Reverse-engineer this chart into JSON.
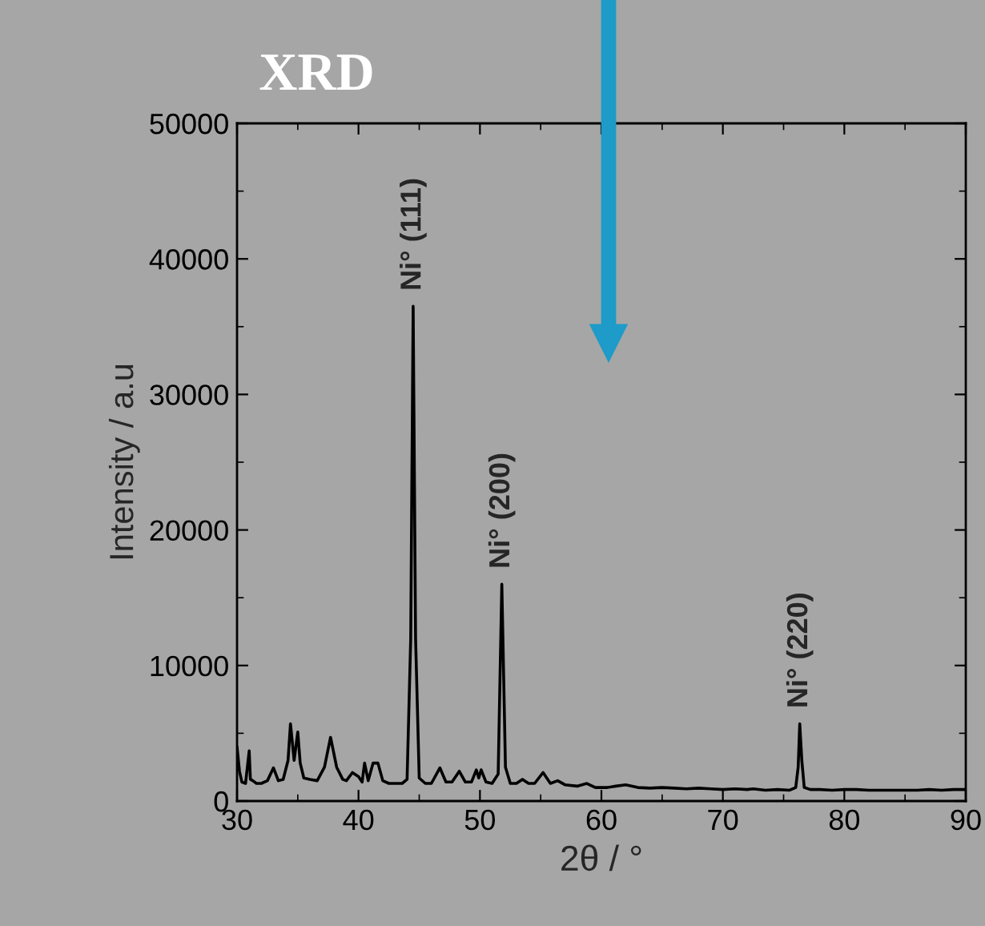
{
  "chart_data": {
    "type": "line",
    "title": "XRD",
    "xlabel": "2θ / °",
    "ylabel": "Intensity / a.u",
    "x": [
      30,
      30.2,
      30.4,
      30.7,
      31.0,
      31.1,
      31.3,
      31.6,
      32.0,
      32.5,
      33.0,
      33.4,
      33.8,
      34.2,
      34.4,
      34.7,
      35.0,
      35.2,
      35.5,
      36.0,
      36.6,
      37.2,
      37.7,
      38.2,
      38.7,
      39.0,
      39.5,
      40.0,
      40.3,
      40.5,
      40.8,
      41.2,
      41.6,
      42.0,
      42.5,
      43.0,
      43.6,
      44.0,
      44.3,
      44.5,
      44.7,
      45.0,
      45.5,
      46.0,
      46.7,
      47.2,
      47.7,
      48.3,
      48.8,
      49.3,
      49.7,
      49.9,
      50.1,
      50.5,
      51.0,
      51.5,
      51.8,
      52.1,
      52.5,
      53.0,
      53.5,
      54.0,
      54.5,
      55.2,
      55.8,
      56.4,
      57.0,
      58.0,
      58.8,
      59.5,
      60.5,
      61.2,
      62.0,
      63.0,
      64.0,
      65.0,
      66.0,
      67.0,
      68.0,
      69.0,
      70.0,
      71.0,
      72.0,
      72.5,
      73.5,
      74.5,
      75.5,
      76.0,
      76.2,
      76.33,
      76.5,
      76.7,
      77.2,
      78.0,
      79.0,
      80.0,
      81.0,
      82.0,
      83.0,
      84.0,
      85.0,
      86.0,
      87.0,
      88.0,
      89.0,
      90.0
    ],
    "series": [
      {
        "color": "#000000",
        "values": [
          4000,
          2200,
          1400,
          1300,
          3700,
          1600,
          1500,
          1300,
          1300,
          1500,
          2450,
          1500,
          1600,
          3000,
          5700,
          3000,
          5100,
          2800,
          1700,
          1600,
          1500,
          2500,
          4700,
          2500,
          1600,
          1500,
          2100,
          1800,
          1400,
          2800,
          1500,
          2800,
          2800,
          1500,
          1300,
          1300,
          1300,
          1600,
          12000,
          36500,
          12000,
          1700,
          1300,
          1300,
          2450,
          1400,
          1400,
          2200,
          1400,
          1400,
          2300,
          1700,
          2300,
          1400,
          1300,
          2000,
          16000,
          2500,
          1300,
          1300,
          1600,
          1300,
          1300,
          2100,
          1300,
          1500,
          1200,
          1100,
          1300,
          1000,
          1000,
          1100,
          1200,
          1000,
          950,
          1000,
          950,
          900,
          950,
          900,
          850,
          900,
          850,
          900,
          800,
          850,
          800,
          1000,
          2500,
          5700,
          3000,
          1000,
          850,
          850,
          800,
          850,
          850,
          800,
          800,
          800,
          800,
          800,
          850,
          800,
          850,
          850
        ]
      }
    ],
    "xlim": [
      30,
      90
    ],
    "ylim": [
      0,
      50000
    ],
    "xticks": [
      30,
      {
        "value": 35,
        "label": null
      },
      40,
      {
        "value": 45,
        "label": null
      },
      50,
      {
        "value": 55,
        "label": null
      },
      60,
      {
        "value": 65,
        "label": null
      },
      70,
      {
        "value": 75,
        "label": null
      },
      80,
      {
        "value": 85,
        "label": null
      },
      90
    ],
    "yticks": [
      0,
      {
        "value": 5000,
        "label": null
      },
      10000,
      {
        "value": 15000,
        "label": null
      },
      20000,
      {
        "value": 25000,
        "label": null
      },
      30000,
      {
        "value": 35000,
        "label": null
      },
      40000,
      {
        "value": 45000,
        "label": null
      },
      50000
    ],
    "annotations": [
      {
        "text": "Ni° (111)",
        "x": 44.5,
        "y": 36500
      },
      {
        "text": "Ni° (200)",
        "x": 51.8,
        "y": 16000
      },
      {
        "text": "Ni° (220)",
        "x": 76.33,
        "y": 5700
      }
    ],
    "grid": false,
    "legend": false,
    "marker": "none",
    "line_style": "solid"
  }
}
